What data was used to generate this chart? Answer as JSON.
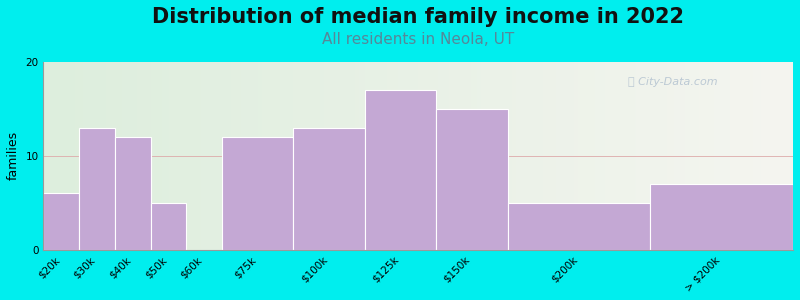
{
  "title": "Distribution of median family income in 2022",
  "subtitle": "All residents in Neola, UT",
  "ylabel": "families",
  "background_color": "#00EEEE",
  "bar_color": "#C4A8D4",
  "bar_edgecolor": "#FFFFFF",
  "categories": [
    "$20k",
    "$30k",
    "$40k",
    "$50k",
    "$60k",
    "$75k",
    "$100k",
    "$125k",
    "$150k",
    "$200k",
    "> $200k"
  ],
  "values": [
    6,
    13,
    12,
    5,
    0,
    12,
    13,
    17,
    15,
    5,
    7
  ],
  "bar_lefts": [
    0,
    1,
    2,
    3,
    4,
    5,
    7,
    9,
    11,
    13,
    17
  ],
  "bar_widths": [
    1,
    1,
    1,
    1,
    1,
    2,
    2,
    2,
    2,
    4,
    4
  ],
  "xlim": [
    0,
    21
  ],
  "ylim": [
    0,
    20
  ],
  "yticks": [
    0,
    10,
    20
  ],
  "watermark": "ⓘ City-Data.com",
  "plot_bg_left_color": "#DDEEDD",
  "plot_bg_right_color": "#F5F5F0",
  "title_fontsize": 15,
  "subtitle_fontsize": 11,
  "subtitle_color": "#558899",
  "tick_fontsize": 7.5,
  "ylabel_fontsize": 9
}
